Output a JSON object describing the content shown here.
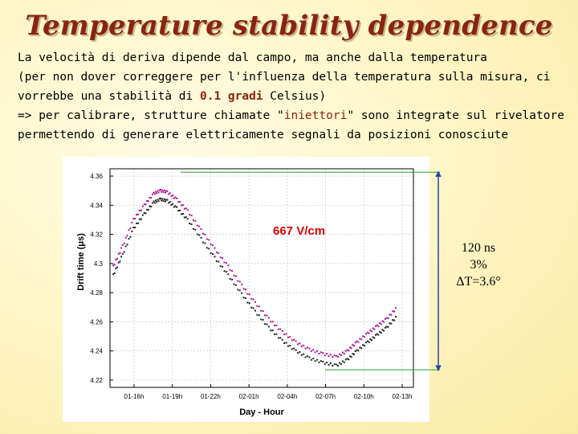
{
  "title": "Temperature stability dependence",
  "paragraph": {
    "line1": "La velocità di deriva dipende dal campo, ma anche dalla temperatura",
    "line2": "(per non dover correggere per l'influenza della temperatura sulla misura, ci",
    "line3_pre": "vorrebbe una stabilità di ",
    "line3_hl": "0.1 gradi",
    "line3_post": " Celsius)",
    "line4_pre": "=> per calibrare, strutture chiamate \"",
    "line4_hl": "iniettori",
    "line4_post": "\" sono integrate sul rivelatore",
    "line5": "permettendo di generare elettricamente segnali da posizioni conosciute"
  },
  "annotation": {
    "line1": "120 ns",
    "line2": "3%",
    "line3": "ΔT=3.6°"
  },
  "colors": {
    "title": "#8a2412",
    "series_a": "#b0148e",
    "series_b": "#222222",
    "guide_lines": "#2a9a2a",
    "field_label": "#e00000"
  },
  "chart_data": {
    "type": "scatter",
    "xlabel": "Day - Hour",
    "ylabel": "Drift time (μs)",
    "field_label": "667 V/cm",
    "ylim": [
      4.215,
      4.365
    ],
    "yticks": [
      "4.36",
      "4.34",
      "4.32",
      "4.3",
      "4.28",
      "4.26",
      "4.24",
      "4.22"
    ],
    "xticks": [
      "01-16h",
      "01-19h",
      "01-22h",
      "02-01h",
      "02-04h",
      "02-07h",
      "02-10h",
      "02-13h"
    ],
    "grid": true,
    "series": [
      {
        "points": [
          [
            0.0,
            4.298
          ],
          [
            0.7,
            4.312
          ],
          [
            1.5,
            4.33
          ],
          [
            2.3,
            4.34
          ],
          [
            3.0,
            4.348
          ],
          [
            3.5,
            4.35
          ],
          [
            4.0,
            4.349
          ],
          [
            4.7,
            4.344
          ],
          [
            5.5,
            4.336
          ],
          [
            6.5,
            4.323
          ],
          [
            7.5,
            4.31
          ],
          [
            8.5,
            4.298
          ],
          [
            9.5,
            4.285
          ],
          [
            10.5,
            4.273
          ],
          [
            11.5,
            4.262
          ],
          [
            12.5,
            4.253
          ],
          [
            13.5,
            4.246
          ],
          [
            14.5,
            4.241
          ],
          [
            15.5,
            4.238
          ],
          [
            16.5,
            4.236
          ],
          [
            17.3,
            4.24
          ],
          [
            18.0,
            4.246
          ],
          [
            18.8,
            4.252
          ],
          [
            19.5,
            4.257
          ],
          [
            20.2,
            4.262
          ],
          [
            21.0,
            4.27
          ]
        ]
      },
      {
        "points": [
          [
            0.0,
            4.292
          ],
          [
            0.7,
            4.306
          ],
          [
            1.5,
            4.324
          ],
          [
            2.3,
            4.334
          ],
          [
            3.0,
            4.342
          ],
          [
            3.5,
            4.344
          ],
          [
            4.0,
            4.343
          ],
          [
            4.7,
            4.338
          ],
          [
            5.5,
            4.33
          ],
          [
            6.5,
            4.317
          ],
          [
            7.5,
            4.304
          ],
          [
            8.5,
            4.292
          ],
          [
            9.5,
            4.279
          ],
          [
            10.5,
            4.267
          ],
          [
            11.5,
            4.256
          ],
          [
            12.5,
            4.247
          ],
          [
            13.5,
            4.24
          ],
          [
            14.5,
            4.235
          ],
          [
            15.5,
            4.232
          ],
          [
            16.5,
            4.23
          ],
          [
            17.3,
            4.234
          ],
          [
            18.0,
            4.24
          ],
          [
            18.8,
            4.246
          ],
          [
            19.5,
            4.251
          ],
          [
            20.2,
            4.256
          ],
          [
            21.0,
            4.264
          ]
        ]
      }
    ],
    "guides": {
      "y_high": 4.35,
      "y_low": 4.232
    }
  }
}
